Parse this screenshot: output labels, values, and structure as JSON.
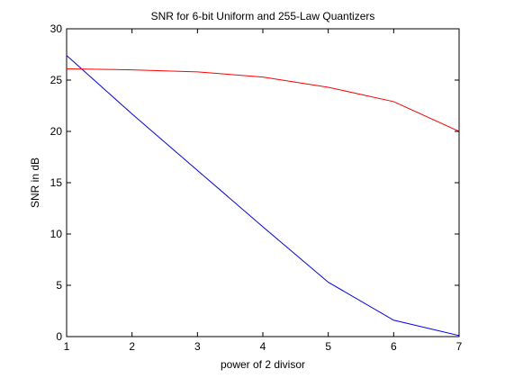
{
  "chart_data": {
    "type": "line",
    "title": "SNR for 6-bit Uniform and 255-Law Quantizers",
    "xlabel": "power of 2 divisor",
    "ylabel": "SNR in dB",
    "xlim": [
      1,
      7
    ],
    "ylim": [
      0,
      30
    ],
    "xticks": [
      "1",
      "2",
      "3",
      "4",
      "5",
      "6",
      "7"
    ],
    "yticks": [
      "0",
      "5",
      "10",
      "15",
      "20",
      "25",
      "30"
    ],
    "grid": false,
    "x": [
      1,
      2,
      3,
      4,
      5,
      6,
      7
    ],
    "series": [
      {
        "color": "#0000ff",
        "values": [
          27.4,
          21.7,
          16.2,
          10.7,
          5.3,
          1.6,
          0.1
        ]
      },
      {
        "color": "#ff0000",
        "values": [
          26.1,
          26.0,
          25.8,
          25.3,
          24.3,
          22.9,
          20.0
        ]
      }
    ]
  }
}
